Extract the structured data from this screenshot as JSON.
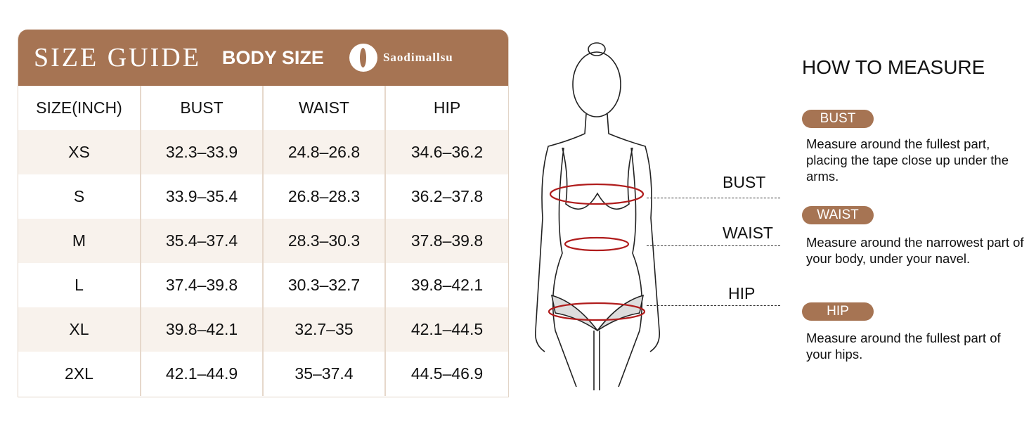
{
  "header": {
    "title": "SIZE GUIDE",
    "subtitle": "BODY SIZE",
    "brand": "Saodimallsu"
  },
  "table": {
    "columns": [
      "SIZE(INCH)",
      "BUST",
      "WAIST",
      "HIP"
    ],
    "rows": [
      [
        "XS",
        "32.3–33.9",
        "24.8–26.8",
        "34.6–36.2"
      ],
      [
        "S",
        "33.9–35.4",
        "26.8–28.3",
        "36.2–37.8"
      ],
      [
        "M",
        "35.4–37.4",
        "28.3–30.3",
        "37.8–39.8"
      ],
      [
        "L",
        "37.4–39.8",
        "30.3–32.7",
        "39.8–42.1"
      ],
      [
        "XL",
        "39.8–42.1",
        "32.7–35",
        "42.1–44.5"
      ],
      [
        "2XL",
        "42.1–44.9",
        "35–37.4",
        "44.5–46.9"
      ]
    ]
  },
  "figure": {
    "labels": [
      "BUST",
      "WAIST",
      "HIP"
    ]
  },
  "how": {
    "title": "HOW TO MEASURE",
    "items": [
      {
        "label": "BUST",
        "text": "Measure around the fullest part, placing the tape close up under the arms."
      },
      {
        "label": "WAIST",
        "text": "Measure around the narrowest part of your body, under your navel."
      },
      {
        "label": "HIP",
        "text": "Measure around the fullest part of your hips."
      }
    ]
  },
  "colors": {
    "accent": "#a67453",
    "row_alt": "#f8f2ec",
    "tape": "#b01c1c"
  }
}
